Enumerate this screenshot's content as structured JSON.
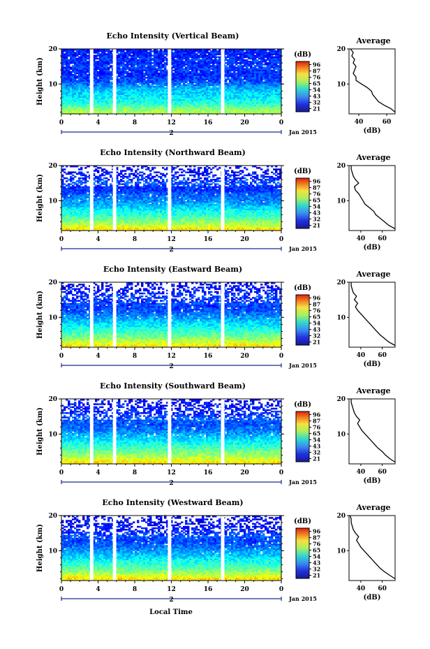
{
  "chart_data": {
    "type": "heatmap",
    "colorbar": {
      "unit_label": "(dB)",
      "ticks": [
        96,
        87,
        76,
        65,
        54,
        43,
        32,
        21
      ],
      "range": [
        21,
        96
      ],
      "colormap": "jet"
    },
    "shared": {
      "x_ticks": [
        "0",
        "4",
        "8",
        "12",
        "16",
        "20",
        "0"
      ],
      "x_range_hours": [
        0,
        24
      ],
      "day_label": "2",
      "month_year": "Jan 2015",
      "xlabel": "Local Time",
      "ylabel": "Height (km)",
      "y_ticks": [
        "20",
        "10"
      ],
      "y_range_km": [
        1.5,
        20
      ],
      "data_gaps_hours": [
        3.3,
        5.8,
        11.8,
        17.6
      ]
    },
    "panels": [
      {
        "title": "Echo Intensity (Vertical Beam)",
        "avg_title": "Average",
        "avg_xlabel": "(dB)",
        "avg_xticks": [
          "40",
          "60"
        ],
        "avg_xlim": [
          33,
          66
        ],
        "avg_profile": {
          "height_km": [
            2,
            3,
            4,
            5,
            6,
            7,
            8,
            9,
            10,
            11,
            12,
            13,
            14,
            15,
            16,
            17,
            18,
            19,
            20
          ],
          "db": [
            66,
            63,
            58,
            54,
            52,
            50,
            49,
            46,
            42,
            38,
            38,
            36,
            37,
            38,
            36,
            37,
            35,
            36,
            34
          ]
        }
      },
      {
        "title": "Echo Intensity (Northward Beam)",
        "avg_title": "Average",
        "avg_xlabel": "(dB)",
        "avg_xticks": [
          "40",
          "60"
        ],
        "avg_xlim": [
          29,
          72
        ],
        "avg_profile": {
          "height_km": [
            2,
            3,
            4,
            5,
            6,
            7,
            8,
            9,
            10,
            11,
            12,
            13,
            14,
            15,
            16,
            17,
            18,
            19,
            20
          ],
          "db": [
            72,
            66,
            62,
            58,
            54,
            52,
            48,
            44,
            42,
            40,
            38,
            35,
            34,
            38,
            35,
            33,
            32,
            31,
            31
          ]
        }
      },
      {
        "title": "Echo Intensity (Eastward Beam)",
        "avg_title": "Average",
        "avg_xlabel": "(dB)",
        "avg_xticks": [
          "40",
          "60"
        ],
        "avg_xlim": [
          29,
          72
        ],
        "avg_profile": {
          "height_km": [
            2,
            3,
            4,
            5,
            6,
            7,
            8,
            9,
            10,
            11,
            12,
            13,
            14,
            15,
            16,
            17,
            18,
            19,
            20
          ],
          "db": [
            72,
            66,
            62,
            58,
            55,
            52,
            49,
            46,
            43,
            40,
            37,
            35,
            37,
            34,
            36,
            33,
            32,
            31,
            31
          ]
        }
      },
      {
        "title": "Echo Intensity (Southward Beam)",
        "avg_title": "Average",
        "avg_xlabel": "(dB)",
        "avg_xticks": [
          "40",
          "60"
        ],
        "avg_xlim": [
          29,
          72
        ],
        "avg_profile": {
          "height_km": [
            2,
            3,
            4,
            5,
            6,
            7,
            8,
            9,
            10,
            11,
            12,
            13,
            14,
            15,
            16,
            17,
            18,
            19,
            20
          ],
          "db": [
            72,
            67,
            63,
            60,
            56,
            53,
            50,
            47,
            44,
            41,
            39,
            37,
            39,
            36,
            34,
            33,
            32,
            31,
            31
          ]
        }
      },
      {
        "title": "Echo Intensity (Westward Beam)",
        "avg_title": "Average",
        "avg_xlabel": "(dB)",
        "avg_xticks": [
          "40",
          "60"
        ],
        "avg_xlim": [
          29,
          72
        ],
        "avg_profile": {
          "height_km": [
            2,
            3,
            4,
            5,
            6,
            7,
            8,
            9,
            10,
            11,
            12,
            13,
            14,
            15,
            16,
            17,
            18,
            19,
            20
          ],
          "db": [
            72,
            67,
            62,
            58,
            55,
            52,
            49,
            46,
            43,
            40,
            38,
            36,
            38,
            35,
            33,
            32,
            31,
            31,
            30
          ]
        }
      }
    ]
  }
}
